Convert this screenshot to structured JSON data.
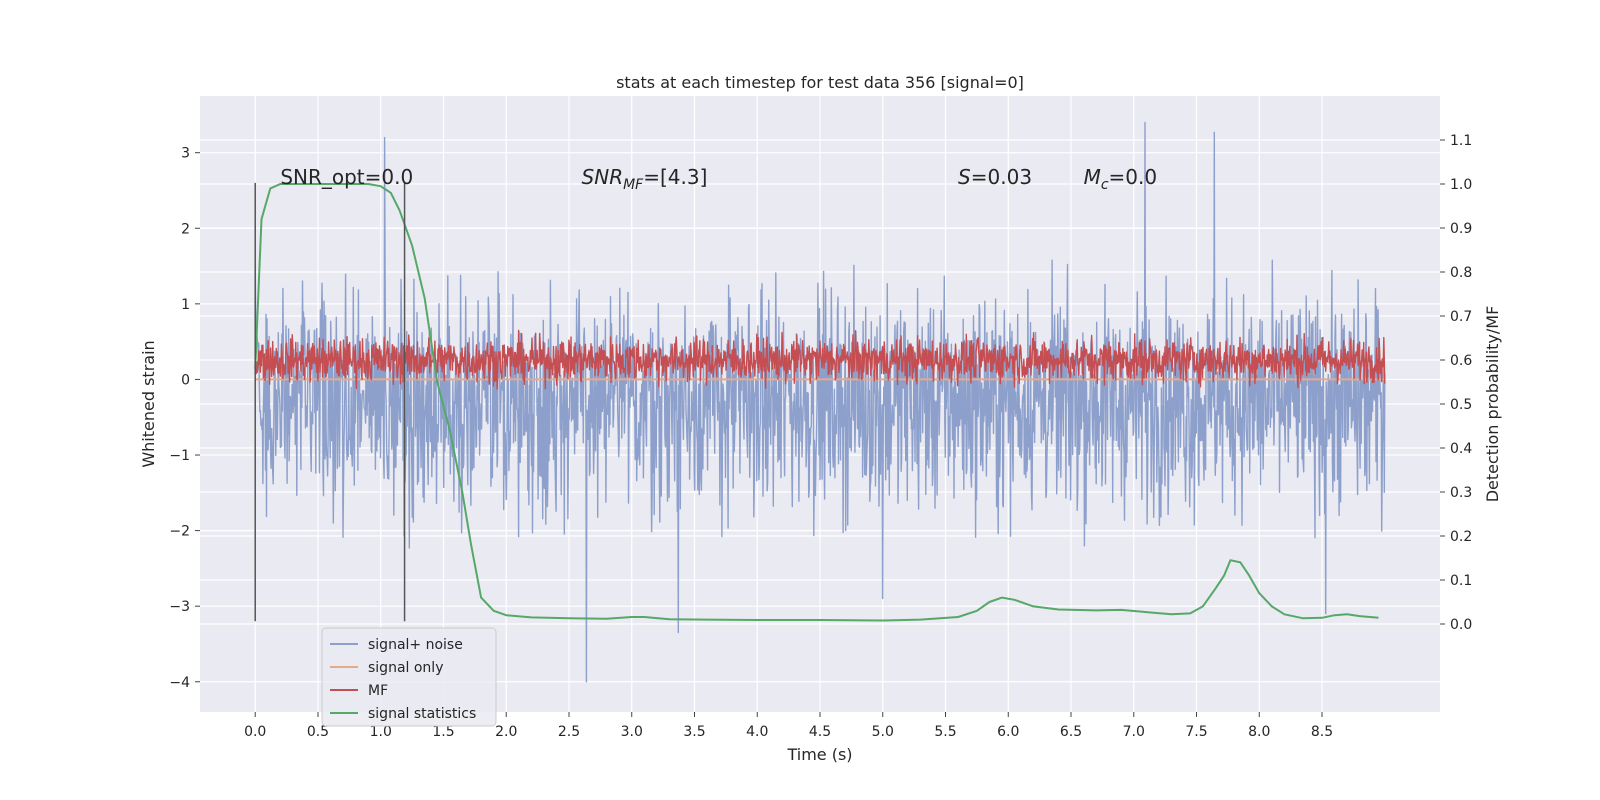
{
  "chart_data": {
    "type": "line",
    "title": "stats at each timestep for test data 356 [signal=0]",
    "xlabel": "Time (s)",
    "ylabel": "Whitened strain",
    "ylabel_right": "Detection probability/MF",
    "xlim": [
      -0.44,
      9.44
    ],
    "ylim": [
      -4.4,
      3.75
    ],
    "ylim_right": [
      -0.2,
      1.2
    ],
    "x_ticks": [
      0.0,
      0.5,
      1.0,
      1.5,
      2.0,
      2.5,
      3.0,
      3.5,
      4.0,
      4.5,
      5.0,
      5.5,
      6.0,
      6.5,
      7.0,
      7.5,
      8.0,
      8.5
    ],
    "x_tick_labels": [
      "0.0",
      "0.5",
      "1.0",
      "1.5",
      "2.0",
      "2.5",
      "3.0",
      "3.5",
      "4.0",
      "4.5",
      "5.0",
      "5.5",
      "6.0",
      "6.5",
      "7.0",
      "7.5",
      "8.0",
      "8.5"
    ],
    "y_ticks": [
      -4,
      -3,
      -2,
      -1,
      0,
      1,
      2,
      3
    ],
    "y_tick_labels": [
      "−4",
      "−3",
      "−2",
      "−1",
      "0",
      "1",
      "2",
      "3"
    ],
    "y2_ticks": [
      0.0,
      0.1,
      0.2,
      0.3,
      0.4,
      0.5,
      0.6,
      0.7,
      0.8,
      0.9,
      1.0,
      1.1
    ],
    "y2_tick_labels": [
      "0.0",
      "0.1",
      "0.2",
      "0.3",
      "0.4",
      "0.5",
      "0.6",
      "0.7",
      "0.8",
      "0.9",
      "1.0",
      "1.1"
    ],
    "grid": true,
    "legend_position": "lower-left",
    "annotations": [
      {
        "text": "SNR_opt=0.0",
        "x": 0.2
      },
      {
        "text": "SNR_MF=[4.3]",
        "x": 2.6
      },
      {
        "text": "S=0.03",
        "x": 5.6
      },
      {
        "text": "M_c=0.0",
        "x": 6.6
      }
    ],
    "vertical_markers": [
      0.0,
      1.19
    ],
    "series": [
      {
        "name": "signal+ noise",
        "axis": "left",
        "color": "#8da0cb",
        "description_kind": "noise",
        "center": -0.3,
        "typical_low": -1.5,
        "typical_high": 1.3,
        "spikes": [
          {
            "x": 1.03,
            "y": 3.2
          },
          {
            "x": 7.09,
            "y": 3.4
          },
          {
            "x": 7.64,
            "y": 3.27
          },
          {
            "x": 2.64,
            "y": -4.0
          },
          {
            "x": 3.37,
            "y": -3.35
          },
          {
            "x": 5.0,
            "y": -2.9
          },
          {
            "x": 8.53,
            "y": -3.1
          }
        ],
        "x_range": [
          0.0,
          9.0
        ]
      },
      {
        "name": "signal only",
        "axis": "left",
        "color": "#e8a98a",
        "points": [
          [
            0.0,
            0.0
          ],
          [
            9.0,
            0.0
          ]
        ]
      },
      {
        "name": "MF",
        "axis": "right",
        "color": "#c44e52",
        "description_kind": "noise",
        "center": 0.6,
        "typical_low": 0.56,
        "typical_high": 0.66,
        "max": 0.72,
        "x_range": [
          0.0,
          9.0
        ]
      },
      {
        "name": "signal statistics",
        "axis": "right",
        "color": "#55a868",
        "points": [
          [
            0.0,
            0.58
          ],
          [
            0.05,
            0.92
          ],
          [
            0.12,
            0.99
          ],
          [
            0.2,
            1.0
          ],
          [
            0.3,
            1.0
          ],
          [
            0.5,
            1.0
          ],
          [
            0.7,
            1.0
          ],
          [
            0.9,
            1.0
          ],
          [
            1.0,
            0.995
          ],
          [
            1.08,
            0.98
          ],
          [
            1.15,
            0.94
          ],
          [
            1.25,
            0.86
          ],
          [
            1.35,
            0.74
          ],
          [
            1.45,
            0.55
          ],
          [
            1.55,
            0.44
          ],
          [
            1.65,
            0.3
          ],
          [
            1.72,
            0.18
          ],
          [
            1.8,
            0.06
          ],
          [
            1.9,
            0.03
          ],
          [
            2.0,
            0.02
          ],
          [
            2.2,
            0.015
          ],
          [
            2.5,
            0.013
          ],
          [
            2.8,
            0.012
          ],
          [
            3.0,
            0.016
          ],
          [
            3.1,
            0.016
          ],
          [
            3.3,
            0.011
          ],
          [
            3.6,
            0.01
          ],
          [
            4.0,
            0.009
          ],
          [
            4.5,
            0.009
          ],
          [
            5.0,
            0.008
          ],
          [
            5.3,
            0.01
          ],
          [
            5.6,
            0.016
          ],
          [
            5.75,
            0.03
          ],
          [
            5.85,
            0.05
          ],
          [
            5.95,
            0.06
          ],
          [
            6.05,
            0.055
          ],
          [
            6.2,
            0.04
          ],
          [
            6.4,
            0.033
          ],
          [
            6.7,
            0.031
          ],
          [
            6.9,
            0.032
          ],
          [
            7.1,
            0.027
          ],
          [
            7.3,
            0.022
          ],
          [
            7.45,
            0.024
          ],
          [
            7.55,
            0.04
          ],
          [
            7.65,
            0.08
          ],
          [
            7.72,
            0.11
          ],
          [
            7.77,
            0.145
          ],
          [
            7.85,
            0.14
          ],
          [
            7.92,
            0.11
          ],
          [
            8.0,
            0.07
          ],
          [
            8.1,
            0.04
          ],
          [
            8.2,
            0.022
          ],
          [
            8.35,
            0.013
          ],
          [
            8.5,
            0.014
          ],
          [
            8.6,
            0.02
          ],
          [
            8.7,
            0.022
          ],
          [
            8.8,
            0.018
          ],
          [
            8.95,
            0.014
          ]
        ]
      }
    ]
  }
}
